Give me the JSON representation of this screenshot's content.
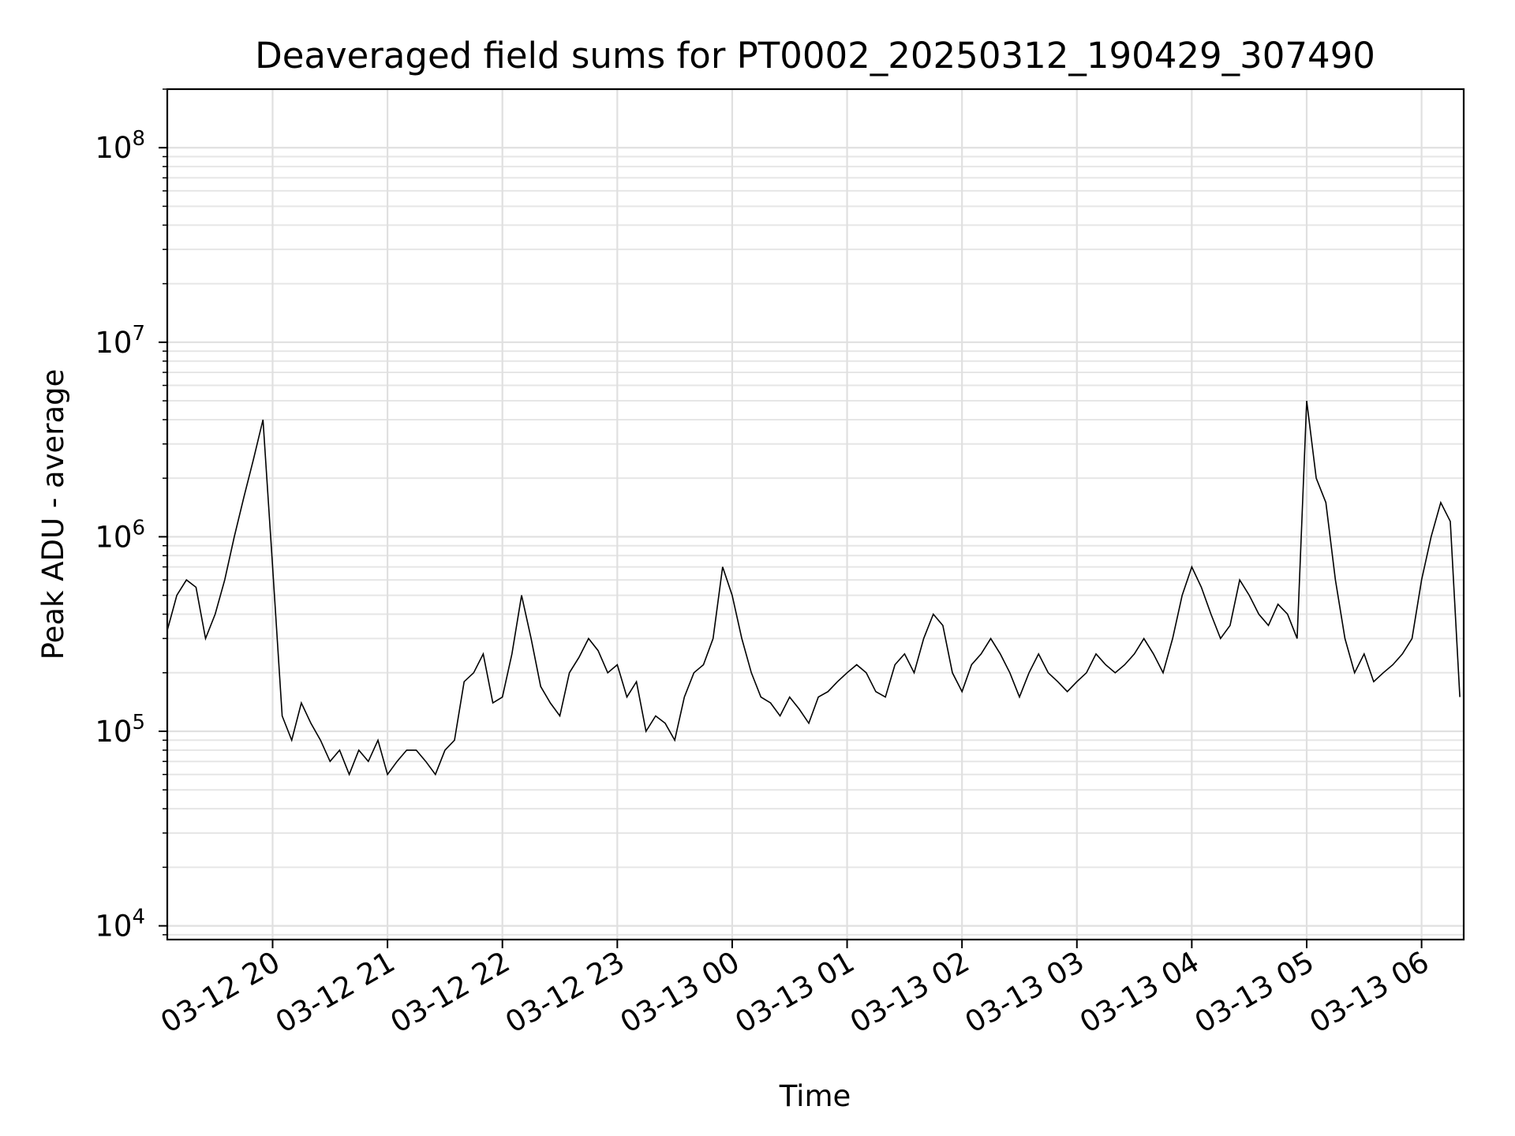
{
  "chart_data": {
    "type": "line",
    "title": "Deaveraged field sums for PT0002_20250312_190429_307490",
    "xlabel": "Time",
    "ylabel": "Peak ADU - average",
    "yscale": "log",
    "ylim": [
      8500,
      200000000
    ],
    "xlim": [
      "2025-03-12 19:05",
      "2025-03-13 06:22"
    ],
    "grid": true,
    "x_ticks": [
      {
        "value": "2025-03-12 20:00",
        "label": "03-12 20"
      },
      {
        "value": "2025-03-12 21:00",
        "label": "03-12 21"
      },
      {
        "value": "2025-03-12 22:00",
        "label": "03-12 22"
      },
      {
        "value": "2025-03-12 23:00",
        "label": "03-12 23"
      },
      {
        "value": "2025-03-13 00:00",
        "label": "03-13 00"
      },
      {
        "value": "2025-03-13 01:00",
        "label": "03-13 01"
      },
      {
        "value": "2025-03-13 02:00",
        "label": "03-13 02"
      },
      {
        "value": "2025-03-13 03:00",
        "label": "03-13 03"
      },
      {
        "value": "2025-03-13 04:00",
        "label": "03-13 04"
      },
      {
        "value": "2025-03-13 05:00",
        "label": "03-13 05"
      },
      {
        "value": "2025-03-13 06:00",
        "label": "03-13 06"
      }
    ],
    "y_ticks": [
      {
        "value": 10000,
        "base": "10",
        "exp": "4"
      },
      {
        "value": 100000,
        "base": "10",
        "exp": "5"
      },
      {
        "value": 1000000,
        "base": "10",
        "exp": "6"
      },
      {
        "value": 10000000,
        "base": "10",
        "exp": "7"
      },
      {
        "value": 100000000,
        "base": "10",
        "exp": "8"
      }
    ],
    "series": [
      {
        "color": "#000000",
        "x": [
          "2025-03-12 19:05",
          "2025-03-12 19:10",
          "2025-03-12 19:15",
          "2025-03-12 19:20",
          "2025-03-12 19:25",
          "2025-03-12 19:30",
          "2025-03-12 19:35",
          "2025-03-12 19:40",
          "2025-03-12 19:45",
          "2025-03-12 19:50",
          "2025-03-12 19:55",
          "2025-03-12 20:00",
          "2025-03-12 20:05",
          "2025-03-12 20:10",
          "2025-03-12 20:15",
          "2025-03-12 20:20",
          "2025-03-12 20:25",
          "2025-03-12 20:30",
          "2025-03-12 20:35",
          "2025-03-12 20:40",
          "2025-03-12 20:45",
          "2025-03-12 20:50",
          "2025-03-12 20:55",
          "2025-03-12 21:00",
          "2025-03-12 21:05",
          "2025-03-12 21:10",
          "2025-03-12 21:15",
          "2025-03-12 21:20",
          "2025-03-12 21:25",
          "2025-03-12 21:30",
          "2025-03-12 21:35",
          "2025-03-12 21:40",
          "2025-03-12 21:45",
          "2025-03-12 21:50",
          "2025-03-12 21:55",
          "2025-03-12 22:00",
          "2025-03-12 22:05",
          "2025-03-12 22:10",
          "2025-03-12 22:15",
          "2025-03-12 22:20",
          "2025-03-12 22:25",
          "2025-03-12 22:30",
          "2025-03-12 22:35",
          "2025-03-12 22:40",
          "2025-03-12 22:45",
          "2025-03-12 22:50",
          "2025-03-12 22:55",
          "2025-03-12 23:00",
          "2025-03-12 23:05",
          "2025-03-12 23:10",
          "2025-03-12 23:15",
          "2025-03-12 23:20",
          "2025-03-12 23:25",
          "2025-03-12 23:30",
          "2025-03-12 23:35",
          "2025-03-12 23:40",
          "2025-03-12 23:45",
          "2025-03-12 23:50",
          "2025-03-12 23:55",
          "2025-03-13 00:00",
          "2025-03-13 00:05",
          "2025-03-13 00:10",
          "2025-03-13 00:15",
          "2025-03-13 00:20",
          "2025-03-13 00:25",
          "2025-03-13 00:30",
          "2025-03-13 00:35",
          "2025-03-13 00:40",
          "2025-03-13 00:45",
          "2025-03-13 00:50",
          "2025-03-13 00:55",
          "2025-03-13 01:00",
          "2025-03-13 01:05",
          "2025-03-13 01:10",
          "2025-03-13 01:15",
          "2025-03-13 01:20",
          "2025-03-13 01:25",
          "2025-03-13 01:30",
          "2025-03-13 01:35",
          "2025-03-13 01:40",
          "2025-03-13 01:45",
          "2025-03-13 01:50",
          "2025-03-13 01:55",
          "2025-03-13 02:00",
          "2025-03-13 02:05",
          "2025-03-13 02:10",
          "2025-03-13 02:15",
          "2025-03-13 02:20",
          "2025-03-13 02:25",
          "2025-03-13 02:30",
          "2025-03-13 02:35",
          "2025-03-13 02:40",
          "2025-03-13 02:45",
          "2025-03-13 02:50",
          "2025-03-13 02:55",
          "2025-03-13 03:00",
          "2025-03-13 03:05",
          "2025-03-13 03:10",
          "2025-03-13 03:15",
          "2025-03-13 03:20",
          "2025-03-13 03:25",
          "2025-03-13 03:30",
          "2025-03-13 03:35",
          "2025-03-13 03:40",
          "2025-03-13 03:45",
          "2025-03-13 03:50",
          "2025-03-13 03:55",
          "2025-03-13 04:00",
          "2025-03-13 04:05",
          "2025-03-13 04:10",
          "2025-03-13 04:15",
          "2025-03-13 04:20",
          "2025-03-13 04:25",
          "2025-03-13 04:30",
          "2025-03-13 04:35",
          "2025-03-13 04:40",
          "2025-03-13 04:45",
          "2025-03-13 04:50",
          "2025-03-13 04:55",
          "2025-03-13 05:00",
          "2025-03-13 05:05",
          "2025-03-13 05:10",
          "2025-03-13 05:15",
          "2025-03-13 05:20",
          "2025-03-13 05:25",
          "2025-03-13 05:30",
          "2025-03-13 05:35",
          "2025-03-13 05:40",
          "2025-03-13 05:45",
          "2025-03-13 05:50",
          "2025-03-13 05:55",
          "2025-03-13 06:00",
          "2025-03-13 06:05",
          "2025-03-13 06:10",
          "2025-03-13 06:15",
          "2025-03-13 06:20"
        ],
        "y": [
          330000,
          500000,
          600000,
          550000,
          300000,
          400000,
          600000,
          1000000,
          1600000,
          2500000,
          4000000,
          700000,
          120000,
          90000,
          140000,
          110000,
          90000,
          70000,
          80000,
          60000,
          80000,
          70000,
          90000,
          60000,
          70000,
          80000,
          80000,
          70000,
          60000,
          80000,
          90000,
          180000,
          200000,
          250000,
          140000,
          150000,
          250000,
          500000,
          300000,
          170000,
          140000,
          120000,
          200000,
          240000,
          300000,
          260000,
          200000,
          220000,
          150000,
          180000,
          100000,
          120000,
          110000,
          90000,
          150000,
          200000,
          220000,
          300000,
          700000,
          500000,
          300000,
          200000,
          150000,
          140000,
          120000,
          150000,
          130000,
          110000,
          150000,
          160000,
          180000,
          200000,
          220000,
          200000,
          160000,
          150000,
          220000,
          250000,
          200000,
          300000,
          400000,
          350000,
          200000,
          160000,
          220000,
          250000,
          300000,
          250000,
          200000,
          150000,
          200000,
          250000,
          200000,
          180000,
          160000,
          180000,
          200000,
          250000,
          220000,
          200000,
          220000,
          250000,
          300000,
          250000,
          200000,
          300000,
          500000,
          700000,
          550000,
          400000,
          300000,
          350000,
          600000,
          500000,
          400000,
          350000,
          450000,
          400000,
          300000,
          5000000,
          2000000,
          1500000,
          600000,
          300000,
          200000,
          250000,
          180000,
          200000,
          220000,
          250000,
          300000,
          600000,
          1000000,
          1500000,
          1200000,
          150000
        ]
      }
    ]
  }
}
